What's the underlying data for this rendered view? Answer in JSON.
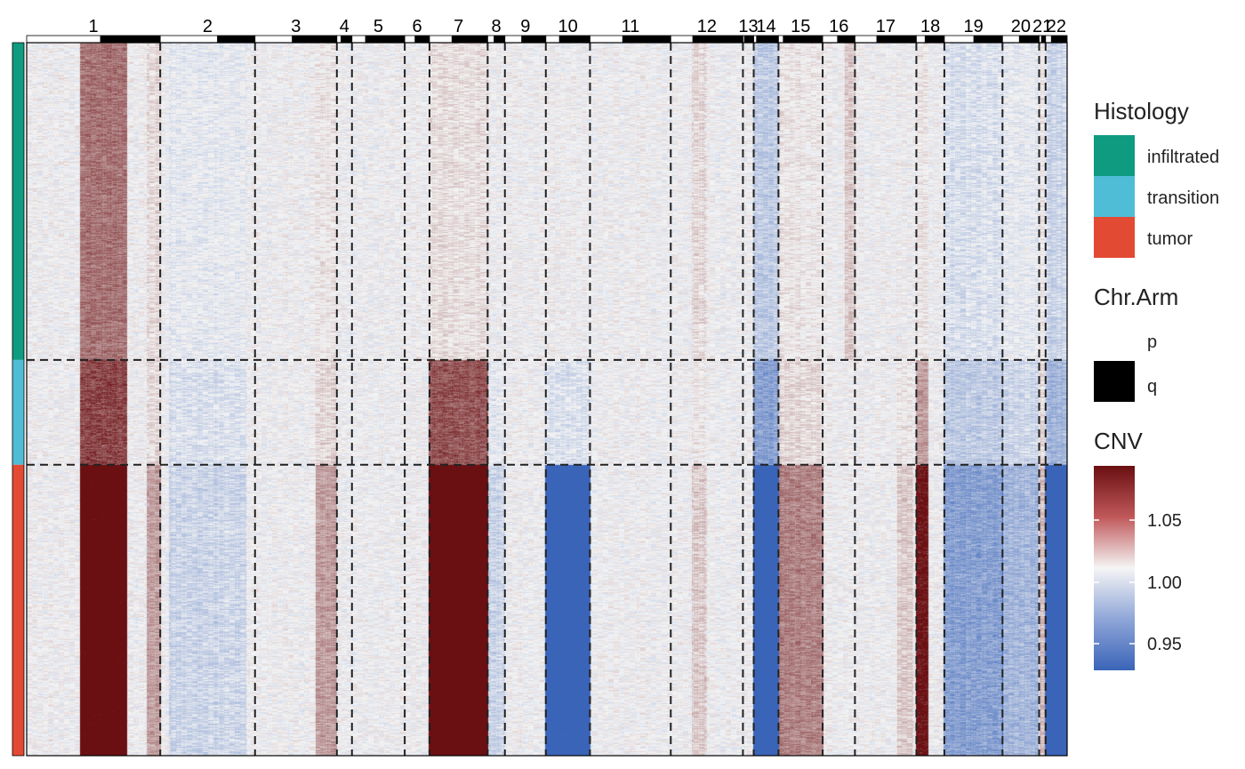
{
  "chart_data": {
    "type": "heatmap",
    "title": "",
    "xlabel": "",
    "ylabel": "",
    "chromosomes": [
      {
        "label": "1",
        "p_frac": 0.55
      },
      {
        "label": "2",
        "p_frac": 0.6
      },
      {
        "label": "3",
        "p_frac": 0.45
      },
      {
        "label": "4",
        "p_frac": 0.25
      },
      {
        "label": "5",
        "p_frac": 0.25
      },
      {
        "label": "6",
        "p_frac": 0.4
      },
      {
        "label": "7",
        "p_frac": 0.38
      },
      {
        "label": "8",
        "p_frac": 0.35
      },
      {
        "label": "9",
        "p_frac": 0.4
      },
      {
        "label": "10",
        "p_frac": 0.3
      },
      {
        "label": "11",
        "p_frac": 0.4
      },
      {
        "label": "12",
        "p_frac": 0.3
      },
      {
        "label": "13",
        "p_frac": 0.1
      },
      {
        "label": "14",
        "p_frac": 0.1
      },
      {
        "label": "15",
        "p_frac": 0.1
      },
      {
        "label": "16",
        "p_frac": 0.45
      },
      {
        "label": "17",
        "p_frac": 0.35
      },
      {
        "label": "18",
        "p_frac": 0.3
      },
      {
        "label": "19",
        "p_frac": 0.5
      },
      {
        "label": "20",
        "p_frac": 0.45
      },
      {
        "label": "21",
        "p_frac": 0.3
      },
      {
        "label": "22",
        "p_frac": 0.25
      }
    ],
    "chromosome_relative_sizes": [
      124,
      88,
      76,
      14,
      49,
      23,
      54,
      16,
      38,
      41,
      75,
      67,
      10,
      23,
      41,
      30,
      57,
      26,
      54,
      34,
      6,
      20
    ],
    "histology_groups": [
      {
        "name": "infiltrated",
        "rows_fraction": 0.445
      },
      {
        "name": "transition",
        "rows_fraction": 0.147
      },
      {
        "name": "tumor",
        "rows_fraction": 0.408
      }
    ],
    "cnv_signal": [
      {
        "chr": "1",
        "from": 0.4,
        "to": 0.75,
        "infiltrated": 0.045,
        "transition": 0.06,
        "tumor": 0.1
      },
      {
        "chr": "1",
        "from": 0.9,
        "to": 1.0,
        "infiltrated": 0.01,
        "transition": 0.01,
        "tumor": 0.03
      },
      {
        "chr": "2",
        "from": 0.1,
        "to": 0.9,
        "infiltrated": -0.005,
        "transition": -0.01,
        "tumor": -0.015
      },
      {
        "chr": "3",
        "from": 0.75,
        "to": 1.0,
        "infiltrated": 0.005,
        "transition": 0.01,
        "tumor": 0.03
      },
      {
        "chr": "7",
        "from": 0.0,
        "to": 1.0,
        "infiltrated": 0.008,
        "transition": 0.055,
        "tumor": 0.12
      },
      {
        "chr": "8",
        "from": 0.0,
        "to": 1.0,
        "infiltrated": 0.0,
        "transition": -0.005,
        "tumor": -0.015
      },
      {
        "chr": "10",
        "from": 0.0,
        "to": 1.0,
        "infiltrated": 0.0,
        "transition": -0.01,
        "tumor": -0.09
      },
      {
        "chr": "12",
        "from": 0.3,
        "to": 0.5,
        "infiltrated": 0.01,
        "transition": 0.005,
        "tumor": 0.015
      },
      {
        "chr": "14",
        "from": 0.0,
        "to": 1.0,
        "infiltrated": -0.02,
        "transition": -0.04,
        "tumor": -0.12
      },
      {
        "chr": "15",
        "from": 0.0,
        "to": 1.0,
        "infiltrated": 0.005,
        "transition": 0.01,
        "tumor": 0.04
      },
      {
        "chr": "16",
        "from": 0.7,
        "to": 1.0,
        "infiltrated": 0.015,
        "transition": 0.0,
        "tumor": 0.0
      },
      {
        "chr": "17",
        "from": 0.7,
        "to": 0.95,
        "infiltrated": 0.0,
        "transition": 0.005,
        "tumor": 0.015
      },
      {
        "chr": "18",
        "from": 0.0,
        "to": 0.4,
        "infiltrated": 0.005,
        "transition": 0.03,
        "tumor": 0.08
      },
      {
        "chr": "19",
        "from": 0.0,
        "to": 1.0,
        "infiltrated": -0.01,
        "transition": -0.02,
        "tumor": -0.04
      },
      {
        "chr": "20",
        "from": 0.0,
        "to": 1.0,
        "infiltrated": -0.005,
        "transition": -0.015,
        "tumor": -0.03
      },
      {
        "chr": "21",
        "from": 0.0,
        "to": 1.0,
        "infiltrated": 0.005,
        "transition": 0.01,
        "tumor": 0.02
      },
      {
        "chr": "22",
        "from": 0.0,
        "to": 1.0,
        "infiltrated": -0.015,
        "transition": -0.03,
        "tumor": -0.1
      }
    ],
    "color_scale": {
      "low": 0.93,
      "mid": 1.0,
      "high": 1.08,
      "low_color": "#3a64b8",
      "mid_color": "#f5f5f5",
      "high_color": "#6a0f12",
      "ticks": [
        0.95,
        1.0,
        1.05
      ]
    },
    "legend": {
      "placement": "right",
      "histology": {
        "title": "Histology",
        "items": [
          {
            "label": "infiltrated",
            "color": "#0f9b80"
          },
          {
            "label": "transition",
            "color": "#4fbdd6"
          },
          {
            "label": "tumor",
            "color": "#e34a33"
          }
        ]
      },
      "chr_arm": {
        "title": "Chr.Arm",
        "items": [
          {
            "label": "p",
            "color": "#ffffff"
          },
          {
            "label": "q",
            "color": "#000000"
          }
        ]
      },
      "cnv": {
        "title": "CNV",
        "tick_labels": [
          "1.05",
          "1.00",
          "0.95"
        ]
      }
    }
  }
}
